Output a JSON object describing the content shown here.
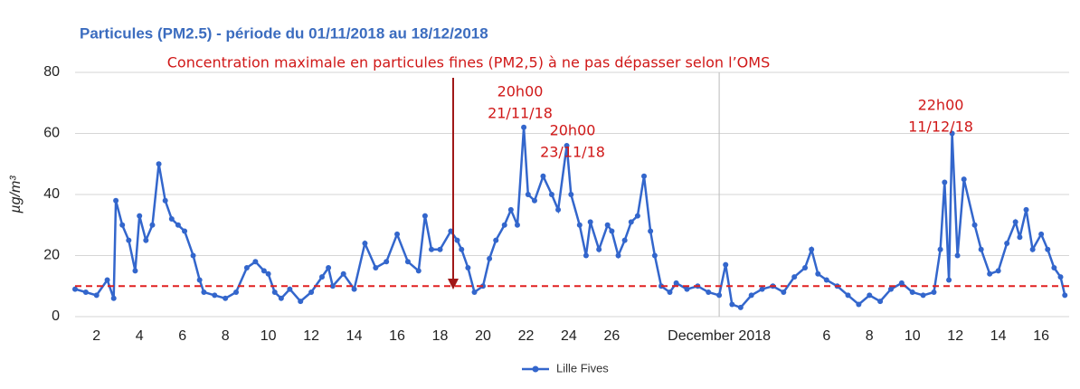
{
  "chart_data": {
    "type": "line",
    "title": "Particules (PM2.5) - période du 01/11/2018 au 18/12/2018",
    "y_label": "µg/m³",
    "x": [
      1,
      1.5,
      2,
      2.5,
      2.8,
      2.9,
      3.2,
      3.5,
      3.8,
      4,
      4.3,
      4.6,
      4.9,
      5.2,
      5.5,
      5.8,
      6.1,
      6.5,
      6.8,
      7,
      7.5,
      8,
      8.5,
      9,
      9.4,
      9.8,
      10,
      10.3,
      10.6,
      11,
      11.5,
      12,
      12.5,
      12.8,
      13,
      13.5,
      14,
      14.5,
      15,
      15.5,
      16,
      16.5,
      17,
      17.3,
      17.6,
      18,
      18.5,
      18.8,
      19,
      19.3,
      19.6,
      20,
      20.3,
      20.6,
      21,
      21.3,
      21.6,
      21.9,
      22.1,
      22.4,
      22.8,
      23.2,
      23.5,
      23.9,
      24.1,
      24.5,
      24.8,
      25,
      25.4,
      25.8,
      26,
      26.3,
      26.6,
      26.9,
      27.2,
      27.5,
      27.8,
      28,
      28.3,
      28.7,
      29,
      29.5,
      30,
      30.5,
      31,
      31.3,
      31.6,
      32,
      32.5,
      33,
      33.5,
      34,
      34.5,
      35,
      35.3,
      35.6,
      36,
      36.5,
      37,
      37.5,
      38,
      38.5,
      39,
      39.5,
      40,
      40.5,
      41,
      41.3,
      41.5,
      41.7,
      41.85,
      42.1,
      42.4,
      42.9,
      43.2,
      43.6,
      44,
      44.4,
      44.8,
      45,
      45.3,
      45.6,
      46,
      46.3,
      46.6,
      46.9,
      47.1
    ],
    "series": [
      {
        "name": "Lille Fives",
        "color": "#3366cc",
        "values": [
          9,
          8,
          7,
          12,
          6,
          38,
          30,
          25,
          15,
          33,
          25,
          30,
          50,
          38,
          32,
          30,
          28,
          20,
          12,
          8,
          7,
          6,
          8,
          16,
          18,
          15,
          14,
          8,
          6,
          9,
          5,
          8,
          13,
          16,
          10,
          14,
          9,
          24,
          16,
          18,
          27,
          18,
          15,
          33,
          22,
          22,
          28,
          25,
          22,
          16,
          8,
          10,
          19,
          25,
          30,
          35,
          30,
          62,
          40,
          38,
          46,
          40,
          35,
          56,
          40,
          30,
          20,
          31,
          22,
          30,
          28,
          20,
          25,
          31,
          33,
          46,
          28,
          20,
          10,
          8,
          11,
          9,
          10,
          8,
          7,
          17,
          4,
          3,
          7,
          9,
          10,
          8,
          13,
          16,
          22,
          14,
          12,
          10,
          7,
          4,
          7,
          5,
          9,
          11,
          8,
          7,
          8,
          22,
          44,
          12,
          60,
          20,
          45,
          30,
          22,
          14,
          15,
          24,
          31,
          26,
          35,
          22,
          27,
          22,
          16,
          13,
          7
        ]
      }
    ],
    "xlim": [
      1,
      47.3
    ],
    "xticks": [
      2,
      4,
      6,
      8,
      10,
      12,
      14,
      16,
      18,
      20,
      22,
      24,
      26,
      {
        "value": 31,
        "label": "December 2018"
      },
      {
        "value": 36,
        "label": "6"
      },
      {
        "value": 38,
        "label": "8"
      },
      {
        "value": 40,
        "label": "10"
      },
      {
        "value": 42,
        "label": "12"
      },
      {
        "value": 44,
        "label": "14"
      },
      {
        "value": 46,
        "label": "16"
      }
    ],
    "ylim": [
      0,
      80
    ],
    "yticks": [
      0,
      20,
      40,
      60,
      80
    ],
    "grid": true,
    "threshold": {
      "value": 10,
      "color": "#e02020",
      "label": "Concentration maximale en particules fines (PM2,5) à ne pas dépasser  selon l’OMS"
    },
    "annotations": [
      {
        "lines": [
          "20h00",
          "21/11/18"
        ]
      },
      {
        "lines": [
          "20h00",
          "23/11/18"
        ]
      },
      {
        "lines": [
          "22h00",
          "11/12/18"
        ]
      }
    ],
    "legend": "bottom"
  }
}
